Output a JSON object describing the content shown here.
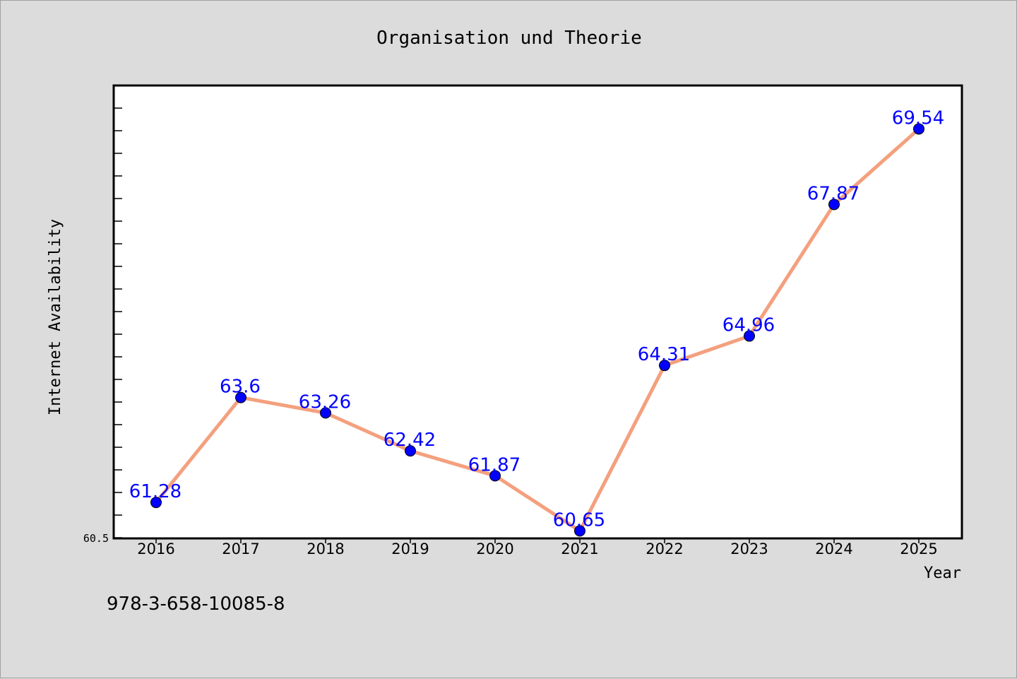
{
  "chart_data": {
    "type": "line",
    "title": "Organisation und Theorie",
    "xlabel": "Year",
    "ylabel": "Internet Availability",
    "categories": [
      "2016",
      "2017",
      "2018",
      "2019",
      "2020",
      "2021",
      "2022",
      "2023",
      "2024",
      "2025"
    ],
    "series": [
      {
        "values": [
          61.28,
          63.6,
          63.26,
          62.42,
          61.87,
          60.65,
          64.31,
          64.96,
          67.87,
          69.54
        ],
        "labels": [
          "61.28",
          "63.6",
          "63.26",
          "62.42",
          "61.87",
          "60.65",
          "64.31",
          "64.96",
          "67.87",
          "69.54"
        ],
        "line_color": "#f4a07e",
        "marker_color": "#0000ff"
      }
    ],
    "ylim": [
      60.5,
      70.5
    ],
    "y_tick_label": "60.5",
    "grid": false,
    "legend": "none"
  },
  "footer": {
    "isbn": "978-3-658-10085-8"
  },
  "colors": {
    "background": "#dcdcdc",
    "plot_background": "#ffffff",
    "line": "#f4a07e",
    "marker": "#0000ff",
    "label": "#0000ff"
  }
}
